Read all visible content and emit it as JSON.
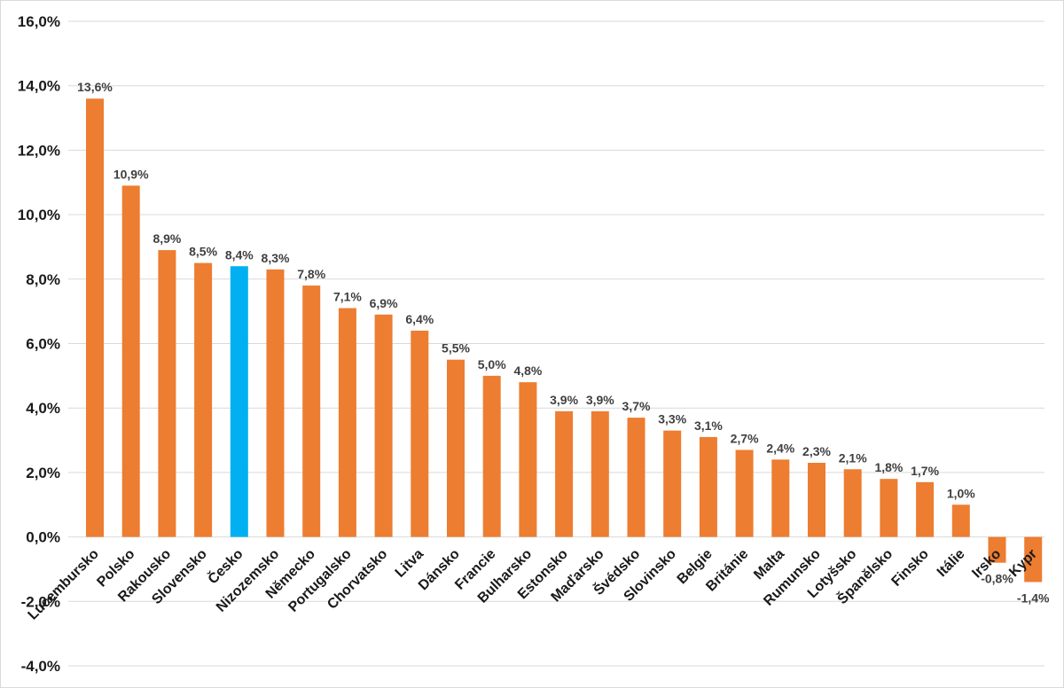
{
  "chart_data": {
    "type": "bar",
    "categories": [
      "Lucembursko",
      "Polsko",
      "Rakousko",
      "Slovensko",
      "Česko",
      "Nizozemsko",
      "Německo",
      "Portugalsko",
      "Chorvatsko",
      "Litva",
      "Dánsko",
      "Francie",
      "Bulharsko",
      "Estonsko",
      "Maďarsko",
      "Švédsko",
      "Slovinsko",
      "Belgie",
      "Británie",
      "Malta",
      "Rumunsko",
      "Lotyšsko",
      "Španělsko",
      "Finsko",
      "Itálie",
      "Irsko",
      "Kypr"
    ],
    "values": [
      13.6,
      10.9,
      8.9,
      8.5,
      8.4,
      8.3,
      7.8,
      7.1,
      6.9,
      6.4,
      5.5,
      5.0,
      4.8,
      3.9,
      3.9,
      3.7,
      3.3,
      3.1,
      2.7,
      2.4,
      2.3,
      2.1,
      1.8,
      1.7,
      1.0,
      -0.8,
      -1.4
    ],
    "data_labels": [
      "13,6%",
      "10,9%",
      "8,9%",
      "8,5%",
      "8,4%",
      "8,3%",
      "7,8%",
      "7,1%",
      "6,9%",
      "6,4%",
      "5,5%",
      "5,0%",
      "4,8%",
      "3,9%",
      "3,9%",
      "3,7%",
      "3,3%",
      "3,1%",
      "2,7%",
      "2,4%",
      "2,3%",
      "2,1%",
      "1,8%",
      "1,7%",
      "1,0%",
      "-0,8%",
      "-1,4%"
    ],
    "highlight_category": "Česko",
    "colors": {
      "bar": "#ED7D31",
      "highlight": "#00B0F0",
      "grid": "#D9D9D9"
    },
    "ylim": [
      -4,
      16
    ],
    "yticks": [
      -4,
      -2,
      0,
      2,
      4,
      6,
      8,
      10,
      12,
      14,
      16
    ],
    "ytick_labels": [
      "-4,0%",
      "-2,0%",
      "0,0%",
      "2,0%",
      "4,0%",
      "6,0%",
      "8,0%",
      "10,0%",
      "12,0%",
      "14,0%",
      "16,0%"
    ],
    "grid": true,
    "legend": "none",
    "title": "",
    "xlabel": "",
    "ylabel": ""
  }
}
